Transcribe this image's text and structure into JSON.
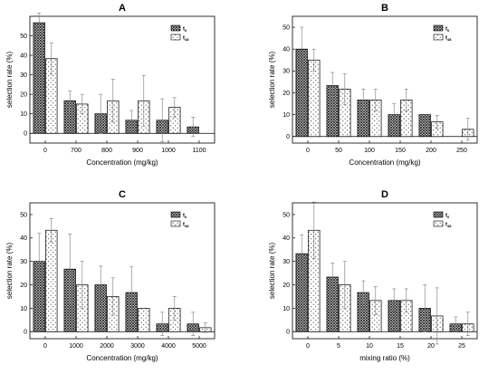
{
  "chart_data": [
    {
      "title": "A",
      "type": "bar",
      "xlabel": "Concentration  (mg/kg)",
      "ylabel": "selection rate (%)",
      "categories": [
        "0",
        "700",
        "800",
        "900",
        "1000",
        "1100"
      ],
      "ylim": [
        -5,
        60
      ],
      "yticks": [
        0,
        10,
        20,
        30,
        40,
        50
      ],
      "series": [
        {
          "name": "t",
          "sub": "0",
          "pattern": "crosshatch",
          "values": [
            56.7,
            16.7,
            10,
            6.7,
            6.7,
            3.3
          ],
          "errors": [
            5,
            5,
            10,
            5,
            11,
            5
          ]
        },
        {
          "name": "t",
          "sub": "48",
          "pattern": "dots",
          "values": [
            38.3,
            15,
            16.7,
            16.7,
            13.3,
            null
          ],
          "errors": [
            8,
            5,
            11,
            13,
            5,
            0
          ]
        }
      ]
    },
    {
      "title": "B",
      "type": "bar",
      "xlabel": "Concentration  (mg/kg)",
      "ylabel": "selection rate (%)",
      "categories": [
        "0",
        "50",
        "100",
        "150",
        "200",
        "250"
      ],
      "ylim": [
        -3,
        55
      ],
      "yticks": [
        0,
        10,
        20,
        30,
        40,
        50
      ],
      "series": [
        {
          "name": "t",
          "sub": "0",
          "pattern": "crosshatch",
          "values": [
            40,
            23.3,
            16.7,
            10,
            10,
            null
          ],
          "errors": [
            10,
            6,
            5,
            5,
            0,
            0
          ]
        },
        {
          "name": "t",
          "sub": "48",
          "pattern": "dots",
          "values": [
            35,
            21.7,
            16.7,
            16.7,
            6.7,
            3.3
          ],
          "errors": [
            5,
            7,
            5,
            5,
            3,
            5
          ]
        }
      ]
    },
    {
      "title": "C",
      "type": "bar",
      "xlabel": "Concentration  (mg/kg)",
      "ylabel": "selection rate (%)",
      "categories": [
        "0",
        "1000",
        "2000",
        "3000",
        "4000",
        "5000"
      ],
      "ylim": [
        -3,
        55
      ],
      "yticks": [
        0,
        10,
        20,
        30,
        40,
        50
      ],
      "series": [
        {
          "name": "t",
          "sub": "0",
          "pattern": "crosshatch",
          "values": [
            30,
            26.7,
            20,
            16.7,
            3.3,
            3.3
          ],
          "errors": [
            12,
            15,
            8,
            11,
            5,
            5
          ]
        },
        {
          "name": "t",
          "sub": "48",
          "pattern": "dots",
          "values": [
            43.3,
            20,
            15,
            10,
            10,
            1.7
          ],
          "errors": [
            5,
            10,
            8,
            0,
            5,
            2
          ]
        }
      ]
    },
    {
      "title": "D",
      "type": "bar",
      "xlabel": "mixing ratio  (%)",
      "ylabel": "selection rate (%)",
      "categories": [
        "0",
        "5",
        "10",
        "15",
        "20",
        "25"
      ],
      "ylim": [
        -3,
        55
      ],
      "yticks": [
        0,
        10,
        20,
        30,
        40,
        50
      ],
      "series": [
        {
          "name": "t",
          "sub": "0",
          "pattern": "crosshatch",
          "values": [
            33.3,
            23.3,
            16.7,
            13.3,
            10,
            3.3
          ],
          "errors": [
            8,
            6,
            5,
            5,
            10,
            3
          ]
        },
        {
          "name": "t",
          "sub": "48",
          "pattern": "dots",
          "values": [
            43.3,
            20,
            13.3,
            13.3,
            6.7,
            3.3
          ],
          "errors": [
            12,
            10,
            6,
            5,
            12,
            5
          ]
        }
      ]
    }
  ]
}
